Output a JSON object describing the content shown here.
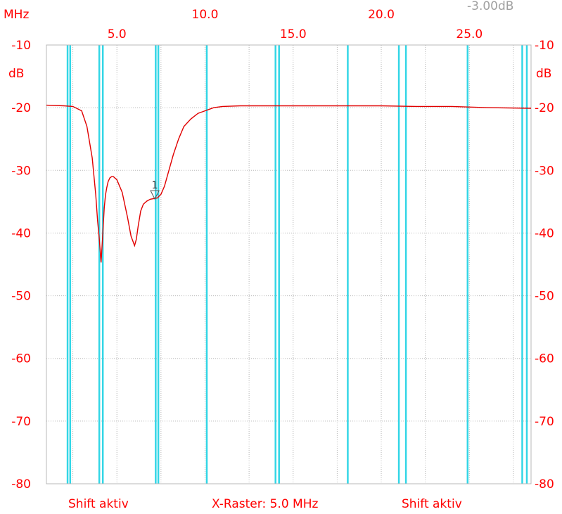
{
  "chart_data": {
    "type": "line",
    "x_unit": "MHz",
    "y_unit": "dB",
    "xlim": [
      1.0,
      28.5
    ],
    "ylim": [
      -80,
      -10
    ],
    "x_ticks_low": [
      "5.0",
      "15.0",
      "25.0"
    ],
    "x_ticks_high": [
      "10.0",
      "20.0"
    ],
    "x_tick_values_low": [
      5.0,
      15.0,
      25.0
    ],
    "x_tick_values_high": [
      10.0,
      20.0
    ],
    "y_ticks_left": [
      "-10",
      "-20",
      "-30",
      "-40",
      "-50",
      "-60",
      "-70",
      "-80"
    ],
    "y_ticks_right": [
      "-10",
      "-20",
      "-30",
      "-40",
      "-50",
      "-60",
      "-70",
      "-80"
    ],
    "y_tick_values": [
      -10,
      -20,
      -30,
      -40,
      -50,
      -60,
      -70,
      -80
    ],
    "grid": true,
    "top_right_note": "-3.00dB",
    "bottom_labels": [
      "Shift aktiv",
      "X-Raster: 5.0 MHz",
      "Shift aktiv"
    ],
    "marker": {
      "label": "1",
      "x": 7.15,
      "y": -34.8
    },
    "vertical_lines_mhz": [
      2.2,
      2.35,
      4.0,
      4.2,
      7.2,
      7.35,
      10.1,
      14.0,
      14.2,
      18.1,
      21.0,
      21.4,
      24.9,
      28.0,
      29.7
    ],
    "series": [
      {
        "color": "#e00000",
        "x": [
          1.0,
          2.0,
          2.5,
          3.0,
          3.3,
          3.6,
          3.8,
          3.9,
          4.0,
          4.1,
          4.2,
          4.28,
          4.35,
          4.42,
          4.5,
          4.6,
          4.7,
          4.8,
          5.0,
          5.3,
          5.6,
          5.8,
          6.0,
          6.1,
          6.2,
          6.35,
          6.5,
          6.7,
          6.9,
          7.1,
          7.3,
          7.5,
          7.7,
          7.9,
          8.2,
          8.5,
          8.8,
          9.2,
          9.6,
          10.0,
          10.5,
          11.0,
          12.0,
          14.0,
          16.0,
          18.0,
          20.0,
          22.0,
          24.0,
          26.0,
          28.5
        ],
        "y": [
          -19.6,
          -19.7,
          -19.8,
          -20.5,
          -23.0,
          -28.0,
          -34.0,
          -38.0,
          -41.0,
          -44.7,
          -40.0,
          -36.0,
          -34.0,
          -32.8,
          -31.8,
          -31.2,
          -31.0,
          -31.0,
          -31.5,
          -33.5,
          -37.5,
          -40.5,
          -42.0,
          -41.0,
          -39.0,
          -36.5,
          -35.4,
          -34.9,
          -34.6,
          -34.5,
          -34.4,
          -33.8,
          -32.5,
          -30.5,
          -27.5,
          -25.0,
          -23.0,
          -21.8,
          -20.9,
          -20.5,
          -20.0,
          -19.8,
          -19.7,
          -19.7,
          -19.7,
          -19.7,
          -19.7,
          -19.8,
          -19.8,
          -20.0,
          -20.1
        ]
      }
    ]
  }
}
